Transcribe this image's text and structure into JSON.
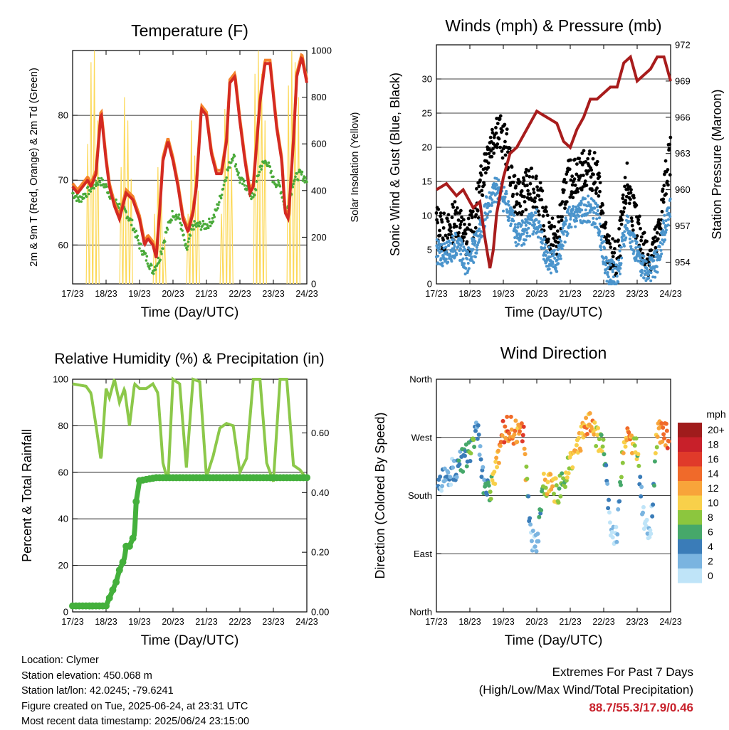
{
  "footer": {
    "location": "Location: Clymer",
    "elevation": "Station elevation: 450.068 m",
    "latlon": "Station lat/lon: 42.0245; -79.6241",
    "created": "Figure created on Tue, 2025-06-24, at 23:31 UTC",
    "recent": "Most recent data timestamp: 2025/06/24 23:15:00",
    "extremes_title": "Extremes For Past 7 Days",
    "extremes_subtitle": "(High/Low/Max Wind/Total Precipitation)",
    "extremes_values": "88.7/55.3/17.9/0.46"
  },
  "colors": {
    "temp": "#d42a22",
    "temp9m": "#f5822a",
    "dewpoint": "#4aaa3a",
    "solar": "#fcd95a",
    "wind": "#4a94cc",
    "gust": "#000000",
    "pressure": "#a81c1c",
    "rh": "#8cc84a",
    "precip": "#44b03c"
  },
  "chart_data": [
    {
      "type": "line",
      "title": "Temperature (F)",
      "xlabel": "Time (Day/UTC)",
      "ylabel": "2m & 9m T (Red, Orange) & 2m Td (Green)",
      "ylabel_right": "Solar Insolation (Yellow)",
      "x_ticks": [
        "17/23",
        "18/23",
        "19/23",
        "20/23",
        "21/23",
        "22/23",
        "23/23",
        "24/23"
      ],
      "ylim": [
        54,
        90
      ],
      "y_ticks": [
        60,
        70,
        80
      ],
      "ylim_right": [
        0,
        1000
      ],
      "y_ticks_right": [
        0,
        200,
        400,
        600,
        800,
        1000
      ],
      "grid": "horizontal",
      "series": [
        {
          "name": "2m T",
          "x": [
            0,
            0.15,
            0.3,
            0.45,
            0.55,
            0.7,
            0.85,
            1.0,
            1.1,
            1.25,
            1.4,
            1.6,
            1.8,
            2.0,
            2.15,
            2.25,
            2.4,
            2.5,
            2.6,
            2.7,
            2.85,
            3.0,
            3.15,
            3.3,
            3.45,
            3.6,
            3.7,
            3.85,
            4.0,
            4.15,
            4.3,
            4.45,
            4.6,
            4.7,
            4.85,
            5.0,
            5.15,
            5.3,
            5.4,
            5.6,
            5.75,
            5.9,
            6.1,
            6.25,
            6.35,
            6.45,
            6.6,
            6.7,
            6.85,
            7.0
          ],
          "values": [
            69,
            68,
            69,
            70,
            69,
            71,
            80.5,
            73,
            69,
            66,
            64,
            68,
            67,
            64,
            60,
            61,
            60,
            58,
            65,
            73,
            76,
            73,
            69,
            64,
            62,
            65,
            69,
            81,
            80,
            74,
            71,
            71,
            76,
            85,
            86,
            79,
            73,
            68,
            69,
            82,
            88,
            88,
            78,
            73,
            65,
            64,
            76,
            86,
            89,
            85
          ]
        },
        {
          "name": "Td",
          "x": [
            0,
            0.2,
            0.4,
            0.6,
            0.8,
            1.0,
            1.2,
            1.4,
            1.6,
            1.8,
            2.0,
            2.2,
            2.4,
            2.6,
            2.8,
            3.0,
            3.2,
            3.4,
            3.6,
            3.8,
            4.0,
            4.2,
            4.4,
            4.6,
            4.8,
            5.0,
            5.2,
            5.4,
            5.6,
            5.8,
            6.0,
            6.2,
            6.4,
            6.6,
            6.8,
            7.0
          ],
          "values": [
            68,
            67,
            68,
            69,
            70,
            69,
            67,
            66,
            65,
            63,
            60,
            58,
            56,
            58,
            62,
            65,
            64,
            59,
            63,
            63,
            63,
            64,
            67,
            71,
            74,
            70,
            69,
            67,
            72,
            73,
            70,
            69,
            65,
            70,
            71,
            70
          ]
        },
        {
          "name": "Solar",
          "axis": "right",
          "x": [
            0.45,
            0.55,
            0.65,
            0.75,
            1.45,
            1.55,
            1.65,
            1.75,
            2.45,
            2.55,
            2.65,
            2.75,
            3.45,
            3.55,
            3.65,
            3.75,
            4.45,
            4.55,
            4.65,
            4.75,
            5.45,
            5.55,
            5.65,
            5.75,
            6.45,
            6.55,
            6.65,
            6.75
          ],
          "values": [
            600,
            950,
            1000,
            700,
            500,
            800,
            700,
            450,
            300,
            500,
            450,
            200,
            300,
            700,
            550,
            400,
            300,
            750,
            700,
            500,
            900,
            1000,
            900,
            700,
            850,
            1000,
            950,
            800
          ]
        }
      ]
    },
    {
      "type": "scatter",
      "title": "Winds (mph) & Pressure (mb)",
      "xlabel": "Time (Day/UTC)",
      "ylabel": "Sonic Wind & Gust (Blue, Black)",
      "ylabel_right": "Station Pressure (Maroon)",
      "x_ticks": [
        "17/23",
        "18/23",
        "19/23",
        "20/23",
        "21/23",
        "22/23",
        "23/23",
        "24/23"
      ],
      "ylim": [
        0,
        35
      ],
      "y_ticks": [
        0,
        5,
        10,
        15,
        20,
        25,
        30
      ],
      "ylim_right": [
        952.2,
        972
      ],
      "y_ticks_right": [
        954,
        957,
        960,
        963,
        966,
        969,
        972
      ],
      "grid": "horizontal",
      "series": [
        {
          "name": "Wind",
          "x": [
            0,
            0.3,
            0.6,
            0.9,
            1.2,
            1.5,
            1.8,
            2.1,
            2.4,
            2.7,
            3.0,
            3.3,
            3.6,
            3.9,
            4.2,
            4.5,
            4.8,
            5.1,
            5.4,
            5.7,
            6.0,
            6.3,
            6.6,
            6.9,
            7.0
          ],
          "values": [
            5,
            4,
            6,
            3,
            6,
            11,
            14,
            12,
            7,
            8,
            9,
            4,
            3,
            9,
            10,
            11,
            10,
            2,
            1,
            9,
            4,
            2,
            3,
            10,
            12
          ]
        },
        {
          "name": "Gust",
          "x": [
            0,
            0.3,
            0.6,
            0.9,
            1.2,
            1.5,
            1.8,
            2.1,
            2.4,
            2.7,
            3.0,
            3.3,
            3.6,
            3.9,
            4.2,
            4.5,
            4.8,
            5.1,
            5.4,
            5.7,
            6.0,
            6.3,
            6.6,
            6.9,
            7.0
          ],
          "values": [
            9,
            7,
            10,
            6,
            11,
            19,
            23,
            20,
            12,
            14,
            14,
            8,
            6,
            15,
            16,
            17,
            16,
            5,
            3,
            15,
            8,
            4,
            6,
            17,
            19
          ]
        },
        {
          "name": "Pressure",
          "axis": "right",
          "x": [
            0,
            0.3,
            0.6,
            0.8,
            1.0,
            1.1,
            1.3,
            1.45,
            1.6,
            1.7,
            1.8,
            2.0,
            2.2,
            2.4,
            2.6,
            2.8,
            3.0,
            3.3,
            3.6,
            3.8,
            4.0,
            4.2,
            4.4,
            4.6,
            4.8,
            5.0,
            5.2,
            5.4,
            5.6,
            5.8,
            6.0,
            6.2,
            6.4,
            6.6,
            6.8,
            7.0
          ],
          "values": [
            960,
            960.5,
            959.5,
            960,
            959,
            958.5,
            959,
            956,
            953.5,
            955,
            958,
            961,
            963,
            963.5,
            964.5,
            965.5,
            966.5,
            966,
            965.5,
            964,
            963.5,
            965,
            966,
            967.5,
            967.5,
            968,
            968.5,
            968.5,
            970.5,
            971,
            969,
            969.5,
            970,
            971,
            971,
            969
          ]
        }
      ]
    },
    {
      "type": "line",
      "title": "Relative Humidity (%) & Precipitation (in)",
      "xlabel": "Time (Day/UTC)",
      "ylabel": "Percent & Total Rainfall",
      "x_ticks": [
        "17/23",
        "18/23",
        "19/23",
        "20/23",
        "21/23",
        "22/23",
        "23/23",
        "24/23"
      ],
      "ylim": [
        0,
        100
      ],
      "y_ticks": [
        0,
        20,
        40,
        60,
        80,
        100
      ],
      "ylim_right": [
        0,
        0.78
      ],
      "y_ticks_right": [
        "0.00",
        "0.20",
        "0.40",
        "0.60"
      ],
      "grid": "horizontal",
      "series": [
        {
          "name": "RH",
          "x": [
            0,
            0.4,
            0.55,
            0.7,
            0.85,
            1.0,
            1.1,
            1.25,
            1.4,
            1.55,
            1.7,
            1.85,
            2.0,
            2.2,
            2.4,
            2.55,
            2.7,
            2.85,
            3.0,
            3.2,
            3.4,
            3.6,
            3.8,
            4.0,
            4.2,
            4.4,
            4.6,
            4.8,
            5.0,
            5.2,
            5.4,
            5.6,
            5.8,
            6.0,
            6.2,
            6.4,
            6.6,
            6.8,
            7.0
          ],
          "values": [
            98,
            97,
            94,
            80,
            65,
            96,
            92,
            100,
            90,
            96,
            80,
            98,
            96,
            96,
            98,
            94,
            64,
            56,
            100,
            98,
            62,
            100,
            99,
            58,
            67,
            79,
            81,
            80,
            60,
            66,
            100,
            100,
            64,
            56,
            100,
            100,
            63,
            61,
            57
          ]
        },
        {
          "name": "Total Precipitation",
          "axis": "right",
          "x": [
            0,
            1.0,
            1.15,
            1.3,
            1.4,
            1.55,
            1.6,
            1.7,
            1.85,
            1.9,
            2.0,
            2.5,
            7.0
          ],
          "values": [
            0.02,
            0.02,
            0.06,
            0.1,
            0.14,
            0.18,
            0.22,
            0.22,
            0.26,
            0.37,
            0.44,
            0.45,
            0.45
          ]
        }
      ]
    },
    {
      "type": "scatter",
      "title": "Wind Direction",
      "xlabel": "Time (Day/UTC)",
      "ylabel": "Direction (Colored By Speed)",
      "x_ticks": [
        "17/23",
        "18/23",
        "19/23",
        "20/23",
        "21/23",
        "22/23",
        "23/23",
        "24/23"
      ],
      "y_ticks": [
        "North",
        "East",
        "South",
        "West",
        "North"
      ],
      "ylim": [
        0,
        360
      ],
      "grid": "horizontal",
      "legend": {
        "title": "mph",
        "labels": [
          "20+",
          "18",
          "16",
          "14",
          "12",
          "10",
          "8",
          "6",
          "4",
          "2",
          "0"
        ],
        "colors": [
          "#a01c1c",
          "#c8202a",
          "#e03a2a",
          "#f06a2a",
          "#f8a43a",
          "#f8d04a",
          "#8cc63e",
          "#46a86a",
          "#3a7cb8",
          "#7ab4e0",
          "#bfe4f8"
        ],
        "placement": "right"
      },
      "series": [
        {
          "name": "Direction",
          "x": [
            0.1,
            0.3,
            0.5,
            0.7,
            0.9,
            1.1,
            1.2,
            1.4,
            1.6,
            1.8,
            2.0,
            2.2,
            2.4,
            2.6,
            2.8,
            3.0,
            3.2,
            3.4,
            3.6,
            3.8,
            4.0,
            4.2,
            4.4,
            4.6,
            4.8,
            5.0,
            5.2,
            5.4,
            5.6,
            5.8,
            6.0,
            6.2,
            6.4,
            6.6,
            6.8,
            7.0
          ],
          "values": [
            200,
            210,
            220,
            230,
            240,
            250,
            300,
            200,
            190,
            220,
            280,
            285,
            275,
            280,
            120,
            100,
            200,
            195,
            185,
            200,
            240,
            245,
            280,
            290,
            270,
            260,
            130,
            120,
            270,
            260,
            250,
            140,
            120,
            280,
            275,
            270
          ],
          "speeds": [
            3,
            4,
            3,
            5,
            6,
            8,
            4,
            4,
            8,
            12,
            16,
            14,
            13,
            16,
            3,
            2,
            10,
            12,
            10,
            8,
            10,
            12,
            12,
            14,
            10,
            8,
            2,
            1,
            12,
            14,
            10,
            2,
            1,
            12,
            14,
            16
          ]
        }
      ]
    }
  ]
}
